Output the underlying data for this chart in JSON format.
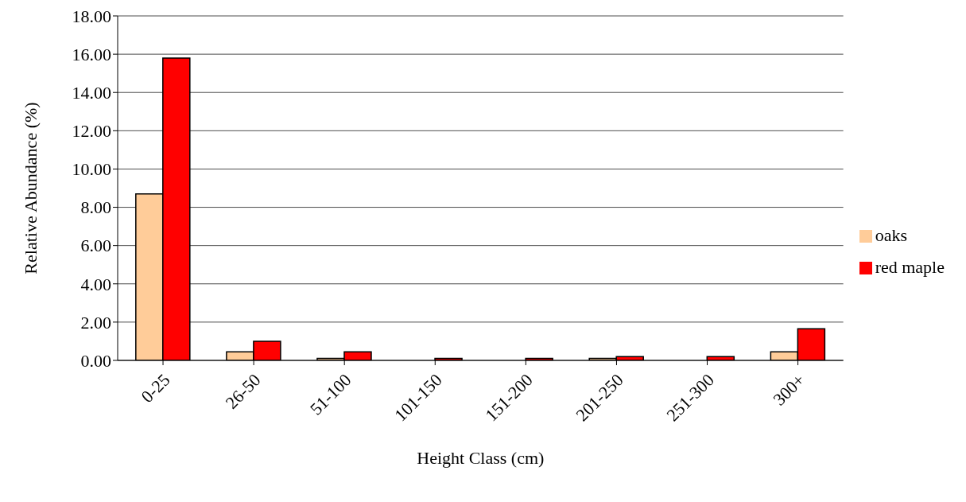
{
  "chart_data": {
    "type": "bar",
    "xlabel": "Height Class (cm)",
    "ylabel": "Relative Abundance (%)",
    "categories": [
      "0-25",
      "26-50",
      "51-100",
      "101-150",
      "151-200",
      "201-250",
      "251-300",
      "300+"
    ],
    "series": [
      {
        "name": "oaks",
        "color": "#ffcc99",
        "values": [
          8.7,
          0.45,
          0.1,
          0,
          0,
          0.1,
          0,
          0.45
        ]
      },
      {
        "name": "red maple",
        "color": "#ff0000",
        "values": [
          15.8,
          1.0,
          0.45,
          0.1,
          0.1,
          0.2,
          0.2,
          1.65
        ]
      }
    ],
    "ylim": [
      0,
      18
    ],
    "yticks": [
      {
        "value": 0,
        "label": "0.00"
      },
      {
        "value": 2,
        "label": "2.00"
      },
      {
        "value": 4,
        "label": "4.00"
      },
      {
        "value": 6,
        "label": "6.00"
      },
      {
        "value": 8,
        "label": "8.00"
      },
      {
        "value": 10,
        "label": "10.00"
      },
      {
        "value": 12,
        "label": "12.00"
      },
      {
        "value": 14,
        "label": "14.00"
      },
      {
        "value": 16,
        "label": "16.00"
      },
      {
        "value": 18,
        "label": "18.00"
      }
    ],
    "grid": "y",
    "legend": "right"
  }
}
